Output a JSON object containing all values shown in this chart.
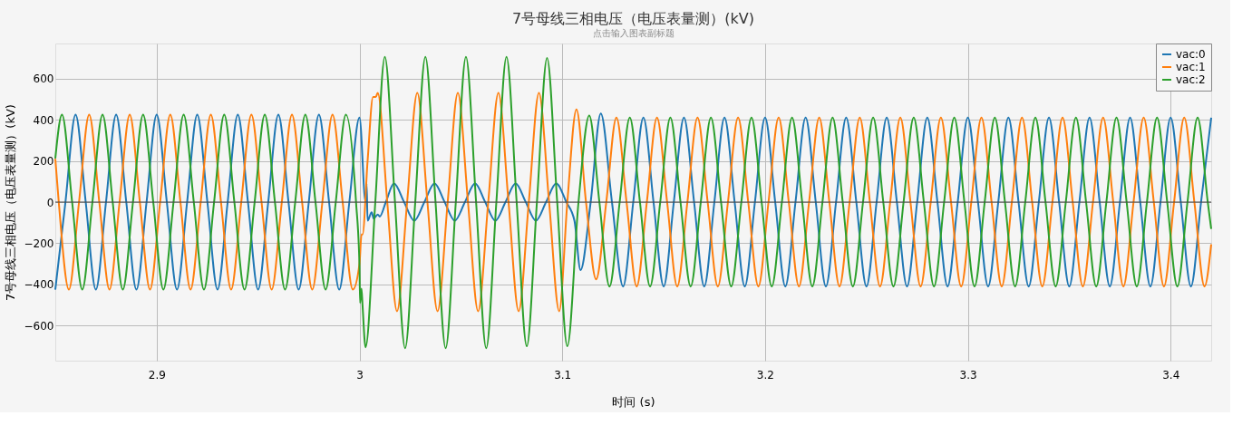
{
  "chart_data": {
    "type": "line",
    "title": "7号母线三相电压（电压表量测）(kV)",
    "subtitle": "点击输入图表副标题",
    "xlabel": "时间 (s)",
    "ylabel": "7号母线三相电压（电压表量测）(kV)",
    "xlim": [
      2.85,
      3.42
    ],
    "xticks": [
      2.9,
      3,
      3.1,
      3.2,
      3.3,
      3.4
    ],
    "ylim": [
      -770,
      770
    ],
    "yticks": [
      -600,
      -400,
      -200,
      0,
      200,
      400,
      600
    ],
    "grid": true,
    "legend": "top right",
    "line_style": "solid",
    "marker": "none",
    "ref_lines": [
      {
        "axis": "y",
        "value": 0,
        "color": "#444444"
      }
    ],
    "series": [
      {
        "name": "vac:0",
        "color": "#1f77b4",
        "x": [
          2.85,
          2.855,
          2.86,
          2.865,
          2.87,
          2.875,
          2.88,
          2.885,
          2.89,
          2.895,
          2.9,
          2.905,
          2.91,
          2.915,
          2.92,
          2.925,
          2.93,
          2.935,
          2.94,
          2.945,
          2.95,
          2.955,
          2.96,
          2.965,
          2.97,
          2.975,
          2.98,
          2.985,
          2.99,
          2.995,
          3.0,
          3.003,
          3.0035,
          3.004,
          3.006,
          3.007,
          3.009,
          3.01,
          3.013,
          3.017,
          3.022,
          3.027,
          3.032,
          3.037,
          3.042,
          3.047,
          3.052,
          3.057,
          3.062,
          3.067,
          3.072,
          3.077,
          3.082,
          3.087,
          3.092,
          3.097,
          3.102,
          3.106,
          3.109,
          3.114,
          3.119,
          3.1245,
          3.13,
          3.135,
          3.14,
          3.145,
          3.15,
          3.155,
          3.16,
          3.165,
          3.17,
          3.175,
          3.18,
          3.185,
          3.19,
          3.195,
          3.2,
          3.205,
          3.21,
          3.215,
          3.22,
          3.225,
          3.23,
          3.235,
          3.24,
          3.245,
          3.25,
          3.255,
          3.26,
          3.265,
          3.27,
          3.275,
          3.28,
          3.285,
          3.29,
          3.295,
          3.3,
          3.305,
          3.31,
          3.315,
          3.32,
          3.325,
          3.33,
          3.335,
          3.34,
          3.345,
          3.35,
          3.355,
          3.36,
          3.365,
          3.37,
          3.375,
          3.38,
          3.385,
          3.39,
          3.395,
          3.4,
          3.405,
          3.41,
          3.415,
          3.42
        ],
        "values": [
          -425,
          0,
          425,
          0,
          -425,
          0,
          425,
          0,
          -425,
          0,
          425,
          0,
          -425,
          0,
          425,
          0,
          -425,
          0,
          425,
          0,
          -425,
          0,
          425,
          0,
          -425,
          0,
          425,
          0,
          -425,
          0,
          410,
          0,
          90,
          -90,
          -50,
          -80,
          -60,
          -70,
          0,
          90,
          0,
          -90,
          0,
          90,
          0,
          -90,
          0,
          90,
          0,
          -90,
          0,
          90,
          0,
          -90,
          0,
          90,
          0,
          -90,
          -330,
          0,
          430,
          0,
          -410,
          0,
          410,
          0,
          -410,
          0,
          410,
          0,
          -410,
          0,
          410,
          0,
          -410,
          0,
          410,
          0,
          -410,
          0,
          410,
          0,
          -410,
          0,
          410,
          0,
          -410,
          0,
          410,
          0,
          -410,
          0,
          410,
          0,
          -410,
          0,
          410,
          0,
          -410,
          0,
          410,
          0,
          -410,
          0,
          410,
          0,
          -410,
          0,
          410,
          0,
          -410,
          0,
          410,
          0,
          -410,
          0,
          410,
          0,
          -410,
          0,
          410
        ]
      },
      {
        "name": "vac:1",
        "color": "#ff7f0e",
        "x": [
          2.85,
          2.8517,
          2.8567,
          2.8617,
          2.8667,
          2.8717,
          2.8767,
          2.8817,
          2.8867,
          2.8917,
          2.8967,
          2.9017,
          2.9067,
          2.9117,
          2.9167,
          2.9217,
          2.9267,
          2.9317,
          2.9367,
          2.9417,
          2.9467,
          2.9517,
          2.9567,
          2.9617,
          2.9667,
          2.9717,
          2.9767,
          2.9817,
          2.9867,
          2.9917,
          2.9967,
          3.0,
          3.001,
          3.0015,
          3.004,
          3.0067,
          3.008,
          3.009,
          3.0137,
          3.0185,
          3.0235,
          3.0285,
          3.0335,
          3.0385,
          3.0435,
          3.0485,
          3.0535,
          3.0585,
          3.0635,
          3.0685,
          3.0735,
          3.0785,
          3.0835,
          3.0885,
          3.0935,
          3.0985,
          3.1025,
          3.107,
          3.1117,
          3.1167,
          3.1217,
          3.1267,
          3.1317,
          3.1367,
          3.1417,
          3.1467,
          3.1517,
          3.1567,
          3.1617,
          3.1667,
          3.1717,
          3.1767,
          3.1817,
          3.1867,
          3.1917,
          3.1967,
          3.2017,
          3.2067,
          3.2117,
          3.2167,
          3.2217,
          3.2267,
          3.2317,
          3.2367,
          3.2417,
          3.2467,
          3.2517,
          3.2567,
          3.2617,
          3.2667,
          3.2717,
          3.2767,
          3.2817,
          3.2867,
          3.2917,
          3.2967,
          3.3017,
          3.3067,
          3.3117,
          3.3167,
          3.3217,
          3.3267,
          3.3317,
          3.3367,
          3.3417,
          3.3467,
          3.3517,
          3.3567,
          3.3617,
          3.3667,
          3.3717,
          3.3767,
          3.3817,
          3.3867,
          3.3917,
          3.3967,
          3.4017,
          3.4067,
          3.4117,
          3.4167,
          3.42
        ],
        "values": [
          210,
          0,
          -425,
          0,
          425,
          0,
          -425,
          0,
          425,
          0,
          -425,
          0,
          425,
          0,
          -425,
          0,
          425,
          0,
          -425,
          0,
          425,
          0,
          -425,
          0,
          425,
          0,
          -425,
          0,
          425,
          0,
          -425,
          -300,
          -157,
          -157,
          200,
          510,
          510,
          530,
          0,
          -530,
          0,
          530,
          0,
          -530,
          0,
          530,
          0,
          -530,
          0,
          530,
          0,
          -530,
          0,
          530,
          0,
          -530,
          0,
          450,
          0,
          -375,
          0,
          410,
          0,
          -410,
          0,
          410,
          0,
          -410,
          0,
          410,
          0,
          -410,
          0,
          410,
          0,
          -410,
          0,
          410,
          0,
          -410,
          0,
          410,
          0,
          -410,
          0,
          410,
          0,
          -410,
          0,
          410,
          0,
          -410,
          0,
          410,
          0,
          -410,
          0,
          410,
          0,
          -410,
          0,
          410,
          0,
          -410,
          0,
          410,
          0,
          -410,
          0,
          410,
          0,
          -410,
          0,
          410,
          0,
          -410,
          0,
          410,
          0,
          -410,
          -205
        ]
      },
      {
        "name": "vac:2",
        "color": "#2ca02c",
        "x": [
          2.85,
          2.8533,
          2.8583,
          2.8633,
          2.8683,
          2.8733,
          2.8783,
          2.8833,
          2.8883,
          2.8933,
          2.8983,
          2.9033,
          2.9083,
          2.9133,
          2.9183,
          2.9233,
          2.9283,
          2.9333,
          2.9383,
          2.9433,
          2.9483,
          2.9533,
          2.9583,
          2.9633,
          2.9683,
          2.9733,
          2.9783,
          2.9833,
          2.9883,
          2.9933,
          2.9983,
          3.0,
          3.0003,
          3.001,
          3.0015,
          3.003,
          3.0078,
          3.0125,
          3.0175,
          3.0225,
          3.0275,
          3.0325,
          3.0375,
          3.0425,
          3.0475,
          3.0525,
          3.0575,
          3.0625,
          3.0675,
          3.0725,
          3.0775,
          3.0825,
          3.0875,
          3.0925,
          3.0975,
          3.1025,
          3.108,
          3.1133,
          3.1183,
          3.1233,
          3.1283,
          3.1333,
          3.1383,
          3.1433,
          3.1483,
          3.1533,
          3.1583,
          3.1633,
          3.1683,
          3.1733,
          3.1783,
          3.1833,
          3.1883,
          3.1933,
          3.1983,
          3.2033,
          3.2083,
          3.2133,
          3.2183,
          3.2233,
          3.2283,
          3.2333,
          3.2383,
          3.2433,
          3.2483,
          3.2533,
          3.2583,
          3.2633,
          3.2683,
          3.2733,
          3.2783,
          3.2833,
          3.2883,
          3.2933,
          3.2983,
          3.3033,
          3.3083,
          3.3133,
          3.3183,
          3.3233,
          3.3283,
          3.3333,
          3.3383,
          3.3433,
          3.3483,
          3.3533,
          3.3583,
          3.3633,
          3.3683,
          3.3733,
          3.3783,
          3.3833,
          3.3883,
          3.3933,
          3.3983,
          3.4033,
          3.4083,
          3.4133,
          3.4183,
          3.42
        ],
        "values": [
          212,
          425,
          0,
          -425,
          0,
          425,
          0,
          -425,
          0,
          425,
          0,
          -425,
          0,
          425,
          0,
          -425,
          0,
          425,
          0,
          -425,
          0,
          425,
          0,
          -425,
          0,
          425,
          0,
          -425,
          0,
          425,
          0,
          -310,
          -490,
          -420,
          -500,
          -705,
          0,
          705,
          0,
          -710,
          0,
          705,
          0,
          -710,
          0,
          705,
          0,
          -710,
          0,
          705,
          0,
          -700,
          0,
          700,
          0,
          -700,
          0,
          420,
          0,
          -410,
          0,
          410,
          0,
          -410,
          0,
          410,
          0,
          -410,
          0,
          410,
          0,
          -410,
          0,
          410,
          0,
          -410,
          0,
          410,
          0,
          -410,
          0,
          410,
          0,
          -410,
          0,
          410,
          0,
          -410,
          0,
          410,
          0,
          -410,
          0,
          410,
          0,
          -410,
          0,
          410,
          0,
          -410,
          0,
          410,
          0,
          -410,
          0,
          410,
          0,
          -410,
          0,
          410,
          0,
          -410,
          0,
          410,
          0,
          -410,
          0,
          410,
          0,
          -130
        ]
      }
    ]
  }
}
